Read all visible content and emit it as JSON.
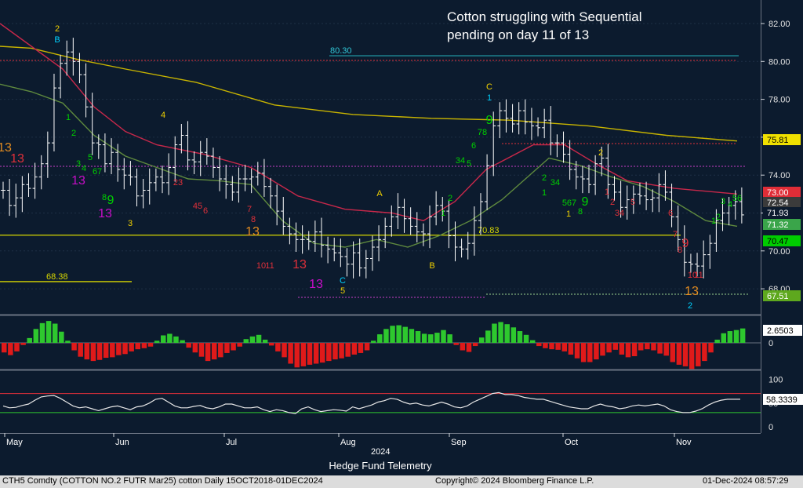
{
  "chart_data": {
    "type": "line",
    "title": "Cotton struggling with Sequential",
    "subtitle": "pending on day 11 of 13",
    "ticker_line": "CTH5 Comdty (COTTON NO.2 FUTR  Mar25) cotton  Daily 15OCT2018-01DEC2024",
    "copyright": "Copyright© 2024 Bloomberg Finance L.P.",
    "timestamp": "01-Dec-2024 08:57:29",
    "credit": "Hedge Fund Telemetry",
    "year_label": "2024",
    "x_ticks": [
      "May",
      "Jun",
      "Jul",
      "Aug",
      "Sep",
      "Oct",
      "Nov"
    ],
    "price_axis": {
      "ylim": [
        66.8,
        83.4
      ],
      "ticks": [
        "82.00",
        "80.00",
        "78.00",
        "76.00",
        "74.00",
        "72.00",
        "70.00",
        "68.00"
      ]
    },
    "osc_axis": {
      "ticks": [
        "0"
      ]
    },
    "rsi_axis": {
      "ylim": [
        -5,
        108
      ],
      "ticks": [
        "100",
        "50",
        "0"
      ]
    },
    "price_series": {
      "name": "CTH5 Daily",
      "closes": [
        73.2,
        72.4,
        72.8,
        73.5,
        73.3,
        73.9,
        74.6,
        75.7,
        78.6,
        79.9,
        80.5,
        80.0,
        79.3,
        77.6,
        75.7,
        75.6,
        74.6,
        75.2,
        74.3,
        74.0,
        73.9,
        72.9,
        73.2,
        73.6,
        73.9,
        73.6,
        74.4,
        75.6,
        76.1,
        74.8,
        74.7,
        75.2,
        75.0,
        74.4,
        73.8,
        73.5,
        73.1,
        73.8,
        73.8,
        73.9,
        74.1,
        73.4,
        72.9,
        72.1,
        71.3,
        70.9,
        70.6,
        70.6,
        70.5,
        71.0,
        70.3,
        70.1,
        69.9,
        69.7,
        69.3,
        69.9,
        69.1,
        69.6,
        70.2,
        70.6,
        71.3,
        71.8,
        72.3,
        71.7,
        71.3,
        71.0,
        70.9,
        71.8,
        72.4,
        72.1,
        70.8,
        70.2,
        70.1,
        70.4,
        71.6,
        72.6,
        74.5,
        76.6,
        77.4,
        77.0,
        76.7,
        77.4,
        76.8,
        76.6,
        76.5,
        76.9,
        75.7,
        75.7,
        75.1,
        74.3,
        73.9,
        73.8,
        73.5,
        74.6,
        74.9,
        73.5,
        73.1,
        72.3,
        72.7,
        73.0,
        72.9,
        72.7,
        72.8,
        73.5,
        73.1,
        71.8,
        70.6,
        69.4,
        69.3,
        69.2,
        69.8,
        70.4,
        71.6,
        72.0,
        72.4,
        72.6,
        71.9
      ]
    },
    "moving_averages": [
      {
        "name": "MA-200",
        "color": "#c8b400",
        "values": [
          [
            0,
            80.8
          ],
          [
            40,
            80.7
          ],
          [
            100,
            80.1
          ],
          [
            160,
            79.6
          ],
          [
            250,
            78.9
          ],
          [
            350,
            77.7
          ],
          [
            450,
            77.2
          ],
          [
            550,
            77.0
          ],
          [
            650,
            76.9
          ],
          [
            750,
            76.6
          ],
          [
            850,
            76.1
          ],
          [
            940,
            75.8
          ]
        ]
      },
      {
        "name": "MA-50",
        "color": "#c8284a",
        "values": [
          [
            0,
            82.0
          ],
          [
            40,
            80.8
          ],
          [
            80,
            79.6
          ],
          [
            120,
            77.6
          ],
          [
            160,
            76.3
          ],
          [
            200,
            75.6
          ],
          [
            260,
            75.1
          ],
          [
            320,
            74.4
          ],
          [
            380,
            72.9
          ],
          [
            440,
            72.2
          ],
          [
            500,
            72.0
          ],
          [
            540,
            71.6
          ],
          [
            580,
            72.6
          ],
          [
            620,
            74.3
          ],
          [
            680,
            75.6
          ],
          [
            720,
            75.6
          ],
          [
            760,
            74.6
          ],
          [
            800,
            73.7
          ],
          [
            860,
            73.3
          ],
          [
            940,
            73.0
          ]
        ]
      },
      {
        "name": "MA-20",
        "color": "#5f8a3e",
        "values": [
          [
            0,
            78.8
          ],
          [
            40,
            78.4
          ],
          [
            80,
            77.8
          ],
          [
            120,
            76.1
          ],
          [
            160,
            75.0
          ],
          [
            200,
            74.4
          ],
          [
            240,
            73.8
          ],
          [
            280,
            73.7
          ],
          [
            320,
            73.5
          ],
          [
            360,
            71.6
          ],
          [
            400,
            70.4
          ],
          [
            440,
            70.2
          ],
          [
            480,
            70.6
          ],
          [
            520,
            70.2
          ],
          [
            560,
            70.8
          ],
          [
            600,
            71.6
          ],
          [
            640,
            72.7
          ],
          [
            700,
            74.9
          ],
          [
            740,
            74.5
          ],
          [
            780,
            73.9
          ],
          [
            820,
            73.4
          ],
          [
            860,
            72.6
          ],
          [
            900,
            71.6
          ],
          [
            940,
            71.3
          ]
        ]
      }
    ],
    "levels": [
      {
        "value": 80.3,
        "label": "80.30",
        "color": "#1e8c99"
      },
      {
        "value": 70.83,
        "label": "70.83",
        "color": "#d8d800"
      },
      {
        "value": 68.38,
        "label": "68.38",
        "color": "#d8d800"
      }
    ],
    "price_tags": [
      {
        "value": 75.81,
        "label": "75.81",
        "bg": "#f0e000",
        "fg": "#000000"
      },
      {
        "value": 73.0,
        "label": "73.00",
        "bg": "#e02d37",
        "fg": "#ffffff"
      },
      {
        "value": 72.54,
        "label": "72.54",
        "bg": "#3b3b3b",
        "fg": "#ffffff"
      },
      {
        "value": 71.93,
        "label": "71.93",
        "bg": "#0c1b2e",
        "fg": "#ffffff"
      },
      {
        "value": 71.32,
        "label": "71.32",
        "bg": "#3aa54a",
        "fg": "#ffffff"
      },
      {
        "value": 70.47,
        "label": "70.47",
        "bg": "#00cc00",
        "fg": "#000000"
      },
      {
        "value": 67.51,
        "label": "67.51",
        "bg": "#5ea81e",
        "fg": "#ffffff"
      }
    ],
    "sequential_labels": [
      {
        "text": "2",
        "x": 73,
        "y": 40,
        "c": "#f0d000"
      },
      {
        "text": "B",
        "x": 73,
        "y": 54,
        "c": "#00d2ff"
      },
      {
        "text": "13",
        "x": 6,
        "y": 193,
        "c": "#e28b20"
      },
      {
        "text": "13",
        "x": 22,
        "y": 207,
        "c": "#e0303a"
      },
      {
        "text": "1",
        "x": 87,
        "y": 153,
        "c": "#00d000"
      },
      {
        "text": "2",
        "x": 94,
        "y": 173,
        "c": "#00d000"
      },
      {
        "text": "3",
        "x": 100,
        "y": 212,
        "c": "#00d000"
      },
      {
        "text": "4",
        "x": 107,
        "y": 218,
        "c": "#00d000"
      },
      {
        "text": "5",
        "x": 115,
        "y": 204,
        "c": "#00d000"
      },
      {
        "text": "6",
        "x": 121,
        "y": 222,
        "c": "#00d000"
      },
      {
        "text": "7",
        "x": 127,
        "y": 222,
        "c": "#00d000"
      },
      {
        "text": "13",
        "x": 100,
        "y": 235,
        "c": "#c80ec8"
      },
      {
        "text": "8",
        "x": 133,
        "y": 255,
        "c": "#00d000"
      },
      {
        "text": "9",
        "x": 141,
        "y": 260,
        "c": "#00d000"
      },
      {
        "text": "13",
        "x": 134,
        "y": 277,
        "c": "#c80ec8"
      },
      {
        "text": "3",
        "x": 166,
        "y": 288,
        "c": "#f0d000"
      },
      {
        "text": "4",
        "x": 208,
        "y": 150,
        "c": "#f0d000"
      },
      {
        "text": "23",
        "x": 227,
        "y": 236,
        "c": "#e0303a"
      },
      {
        "text": "45",
        "x": 252,
        "y": 266,
        "c": "#e0303a"
      },
      {
        "text": "6",
        "x": 262,
        "y": 272,
        "c": "#e0303a"
      },
      {
        "text": "7",
        "x": 318,
        "y": 270,
        "c": "#e0303a"
      },
      {
        "text": "8",
        "x": 323,
        "y": 283,
        "c": "#e0303a"
      },
      {
        "text": "13",
        "x": 322,
        "y": 300,
        "c": "#e28b20"
      },
      {
        "text": "10",
        "x": 333,
        "y": 342,
        "c": "#e0303a"
      },
      {
        "text": "11",
        "x": 344,
        "y": 342,
        "c": "#e0303a"
      },
      {
        "text": "13",
        "x": 382,
        "y": 342,
        "c": "#e0303a"
      },
      {
        "text": "13",
        "x": 403,
        "y": 367,
        "c": "#c80ec8"
      },
      {
        "text": "C",
        "x": 437,
        "y": 361,
        "c": "#00d2ff"
      },
      {
        "text": "5",
        "x": 437,
        "y": 374,
        "c": "#f0d000"
      },
      {
        "text": "A",
        "x": 484,
        "y": 250,
        "c": "#f0d000"
      },
      {
        "text": "B",
        "x": 551,
        "y": 342,
        "c": "#f0d000"
      },
      {
        "text": "1",
        "x": 565,
        "y": 275,
        "c": "#00d000"
      },
      {
        "text": "2",
        "x": 574,
        "y": 256,
        "c": "#00d000"
      },
      {
        "text": "34",
        "x": 587,
        "y": 208,
        "c": "#00d000"
      },
      {
        "text": "5",
        "x": 598,
        "y": 212,
        "c": "#00d000"
      },
      {
        "text": "6",
        "x": 604,
        "y": 189,
        "c": "#00d000"
      },
      {
        "text": "78",
        "x": 615,
        "y": 172,
        "c": "#00d000"
      },
      {
        "text": "9",
        "x": 624,
        "y": 158,
        "c": "#00d000"
      },
      {
        "text": "C",
        "x": 624,
        "y": 114,
        "c": "#f0d000"
      },
      {
        "text": "1",
        "x": 624,
        "y": 128,
        "c": "#00d2ff"
      },
      {
        "text": "1",
        "x": 694,
        "y": 249,
        "c": "#00d000"
      },
      {
        "text": "2",
        "x": 694,
        "y": 230,
        "c": "#00d000"
      },
      {
        "text": "34",
        "x": 708,
        "y": 236,
        "c": "#00d000"
      },
      {
        "text": "567",
        "x": 726,
        "y": 262,
        "c": "#00d000"
      },
      {
        "text": "8",
        "x": 740,
        "y": 273,
        "c": "#00d000"
      },
      {
        "text": "9",
        "x": 746,
        "y": 262,
        "c": "#00d000"
      },
      {
        "text": "1",
        "x": 725,
        "y": 276,
        "c": "#f0d000"
      },
      {
        "text": "2",
        "x": 766,
        "y": 198,
        "c": "#f0d000"
      },
      {
        "text": "1",
        "x": 774,
        "y": 248,
        "c": "#e0303a"
      },
      {
        "text": "2",
        "x": 781,
        "y": 261,
        "c": "#e0303a"
      },
      {
        "text": "34",
        "x": 790,
        "y": 275,
        "c": "#e0303a"
      },
      {
        "text": "5",
        "x": 807,
        "y": 261,
        "c": "#e0303a"
      },
      {
        "text": "6",
        "x": 855,
        "y": 275,
        "c": "#e0303a"
      },
      {
        "text": "7",
        "x": 861,
        "y": 302,
        "c": "#e0303a"
      },
      {
        "text": "8",
        "x": 867,
        "y": 322,
        "c": "#e0303a"
      },
      {
        "text": "9",
        "x": 874,
        "y": 315,
        "c": "#e0303a"
      },
      {
        "text": "10",
        "x": 883,
        "y": 354,
        "c": "#e0303a"
      },
      {
        "text": "11",
        "x": 891,
        "y": 354,
        "c": "#e0303a"
      },
      {
        "text": "13",
        "x": 882,
        "y": 376,
        "c": "#e28b20"
      },
      {
        "text": "2",
        "x": 880,
        "y": 393,
        "c": "#00d2ff"
      },
      {
        "text": "1",
        "x": 910,
        "y": 285,
        "c": "#00d000"
      },
      {
        "text": "2",
        "x": 916,
        "y": 280,
        "c": "#00d000"
      },
      {
        "text": "3",
        "x": 922,
        "y": 260,
        "c": "#00d000"
      },
      {
        "text": "4",
        "x": 931,
        "y": 264,
        "c": "#00d000"
      },
      {
        "text": "56",
        "x": 940,
        "y": 256,
        "c": "#00d000"
      }
    ],
    "oscillator": {
      "value_label": "2.6503",
      "values": [
        -1.8,
        -2.3,
        -1.6,
        -0.4,
        0.9,
        2.6,
        3.7,
        4.1,
        3.6,
        2.1,
        0.4,
        -1.4,
        -2.6,
        -3.1,
        -3.4,
        -3.2,
        -2.8,
        -2.7,
        -2.3,
        -2.1,
        -1.6,
        -1.2,
        -1.0,
        -0.7,
        0.4,
        1.4,
        1.7,
        1.2,
        0.5,
        -0.9,
        -1.8,
        -2.6,
        -3.4,
        -3.1,
        -2.7,
        -1.9,
        -1.4,
        -0.7,
        0.7,
        1.2,
        1.5,
        0.6,
        -0.5,
        -1.6,
        -2.7,
        -3.9,
        -4.6,
        -4.4,
        -4.1,
        -3.9,
        -3.7,
        -3.4,
        -3.1,
        -2.9,
        -2.6,
        -2.2,
        -1.9,
        -1.4,
        0.4,
        1.6,
        2.6,
        3.2,
        3.3,
        3.0,
        2.6,
        2.2,
        1.7,
        1.6,
        1.9,
        2.4,
        1.6,
        -0.4,
        -1.4,
        -1.7,
        -0.6,
        1.0,
        2.3,
        3.6,
        3.9,
        3.5,
        2.9,
        2.2,
        1.5,
        0.5,
        -0.6,
        -1.0,
        -1.2,
        -1.3,
        -1.6,
        -2.2,
        -2.9,
        -3.6,
        -3.6,
        -3.1,
        -2.4,
        -1.8,
        -1.3,
        -2.2,
        -2.7,
        -2.5,
        -1.4,
        -1.2,
        -1.4,
        -2.0,
        -2.4,
        -3.6,
        -4.1,
        -4.4,
        -4.9,
        -4.4,
        -3.4,
        -1.8,
        0.6,
        1.8,
        2.2,
        2.4,
        2.7
      ]
    },
    "rsi": {
      "value_label": "58.3339",
      "upper": 70,
      "lower": 30,
      "values": [
        44,
        40,
        41,
        45,
        48,
        56,
        63,
        65,
        66,
        60,
        52,
        44,
        40,
        42,
        38,
        34,
        38,
        42,
        44,
        40,
        36,
        42,
        44,
        50,
        58,
        60,
        52,
        44,
        40,
        40,
        43,
        45,
        40,
        38,
        42,
        48,
        48,
        44,
        40,
        40,
        42,
        36,
        32,
        36,
        34,
        30,
        28,
        38,
        42,
        36,
        32,
        34,
        36,
        35,
        33,
        42,
        38,
        42,
        46,
        52,
        55,
        60,
        58,
        52,
        48,
        50,
        46,
        44,
        48,
        52,
        48,
        42,
        40,
        44,
        52,
        58,
        64,
        70,
        72,
        68,
        68,
        66,
        62,
        60,
        58,
        58,
        54,
        50,
        46,
        42,
        40,
        38,
        38,
        44,
        48,
        44,
        42,
        38,
        40,
        44,
        46,
        44,
        46,
        48,
        44,
        36,
        32,
        30,
        30,
        33,
        38,
        46,
        52,
        56,
        58,
        58,
        58
      ]
    }
  }
}
